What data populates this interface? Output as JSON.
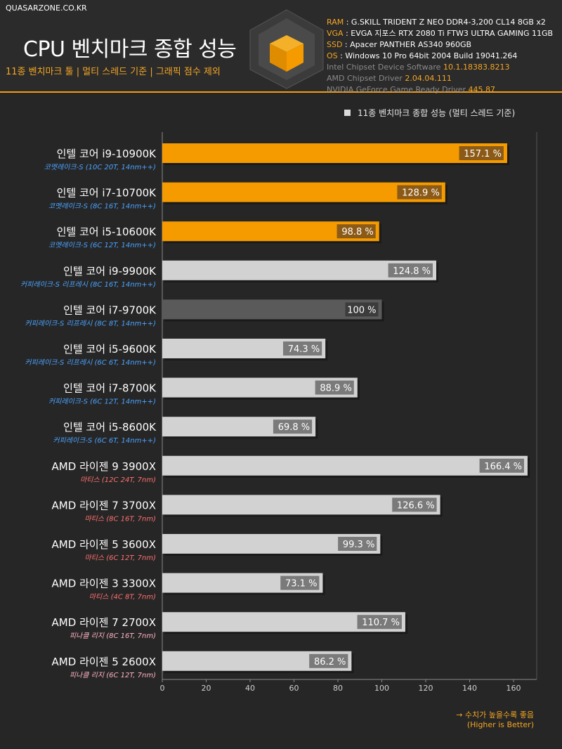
{
  "site": "QUASARZONE.CO.KR",
  "header": {
    "title": "CPU 벤치마크 종합 성능",
    "subtitle": "11종 벤치마크 툴 | 멀티 스레드 기준 | 그래픽 점수 제외",
    "specs": {
      "ram_key": "RAM",
      "ram": "G.SKILL TRIDENT Z NEO DDR4-3,200 CL14 8GB x2",
      "vga_key": "VGA",
      "vga": "EVGA 지포스 RTX 2080 Ti FTW3 ULTRA GAMING 11GB",
      "ssd_key": "SSD",
      "ssd": "Apacer PANTHER AS340 960GB",
      "os_key": "OS",
      "os": "Windows 10 Pro 64bit 2004 Build 19041.264",
      "intel_label": "Intel Chipset Device Software",
      "intel_ver": "10.1.18383.8213",
      "amd_label": "AMD Chipset Driver",
      "amd_ver": "2.04.04.111",
      "nvidia_label": "NVIDIA GeForce Game Ready Driver",
      "nvidia_ver": "445.87"
    }
  },
  "legend": "11종 벤치마크 종합 성능 (멀티 스레드 기준)",
  "note": {
    "line1": "→ 수치가 높을수록 좋음",
    "line2": "(Higher is Better)"
  },
  "colors": {
    "orange": "#f59b00",
    "light": "#d2d2d2",
    "dark": "#5a5a5a",
    "blue_sub": "#4aa3ff",
    "red_sub": "#ff6f6f",
    "pink_sub": "#ffb3c4"
  },
  "chart_data": {
    "type": "bar",
    "orientation": "horizontal",
    "title": "11종 벤치마크 종합 성능 (멀티 스레드 기준)",
    "xlim": [
      0,
      170
    ],
    "xticks": [
      0,
      20,
      40,
      60,
      80,
      100,
      120,
      140,
      160
    ],
    "categories": [
      {
        "name": "인텔 코어 i9-10900K",
        "sub": "코멧레이크-S (10C 20T, 14nm++)",
        "value": 157.1,
        "label": "157.1 %",
        "style": "orange",
        "sub_color": "blue_sub"
      },
      {
        "name": "인텔 코어 i7-10700K",
        "sub": "코멧레이크-S (8C 16T, 14nm++)",
        "value": 128.9,
        "label": "128.9 %",
        "style": "orange",
        "sub_color": "blue_sub"
      },
      {
        "name": "인텔 코어 i5-10600K",
        "sub": "코멧레이크-S (6C 12T, 14nm++)",
        "value": 98.8,
        "label": "98.8 %",
        "style": "orange",
        "sub_color": "blue_sub"
      },
      {
        "name": "인텔 코어 i9-9900K",
        "sub": "커피레이크-S 리프레시 (8C 16T, 14nm++)",
        "value": 124.8,
        "label": "124.8 %",
        "style": "light",
        "sub_color": "blue_sub"
      },
      {
        "name": "인텔 코어 i7-9700K",
        "sub": "커피레이크-S 리프레시 (8C 8T, 14nm++)",
        "value": 100,
        "label": "100 %",
        "style": "dark",
        "sub_color": "blue_sub"
      },
      {
        "name": "인텔 코어 i5-9600K",
        "sub": "커피레이크-S 리프레시 (6C 6T, 14nm++)",
        "value": 74.3,
        "label": "74.3 %",
        "style": "light",
        "sub_color": "blue_sub"
      },
      {
        "name": "인텔 코어 i7-8700K",
        "sub": "커피레이크-S  (6C 12T, 14nm++)",
        "value": 88.9,
        "label": "88.9 %",
        "style": "light",
        "sub_color": "blue_sub"
      },
      {
        "name": "인텔 코어 i5-8600K",
        "sub": "커피레이크-S  (6C 6T, 14nm++)",
        "value": 69.8,
        "label": "69.8 %",
        "style": "light",
        "sub_color": "blue_sub"
      },
      {
        "name": "AMD 라이젠 9 3900X",
        "sub": "마티스 (12C 24T, 7nm)",
        "value": 166.4,
        "label": "166.4 %",
        "style": "light",
        "sub_color": "red_sub"
      },
      {
        "name": "AMD 라이젠 7 3700X",
        "sub": "마티스 (8C 16T, 7nm)",
        "value": 126.6,
        "label": "126.6 %",
        "style": "light",
        "sub_color": "red_sub"
      },
      {
        "name": "AMD 라이젠 5 3600X",
        "sub": "마티스 (6C 12T, 7nm)",
        "value": 99.3,
        "label": "99.3 %",
        "style": "light",
        "sub_color": "red_sub"
      },
      {
        "name": "AMD 라이젠 3 3300X",
        "sub": "마티스 (4C 8T, 7nm)",
        "value": 73.1,
        "label": "73.1 %",
        "style": "light",
        "sub_color": "red_sub"
      },
      {
        "name": "AMD 라이젠 7 2700X",
        "sub": "피나클 리지 (8C 16T, 7nm)",
        "value": 110.7,
        "label": "110.7 %",
        "style": "light",
        "sub_color": "pink_sub"
      },
      {
        "name": "AMD 라이젠 5 2600X",
        "sub": "피나클 리지 (6C 12T, 7nm)",
        "value": 86.2,
        "label": "86.2 %",
        "style": "light",
        "sub_color": "pink_sub"
      }
    ]
  }
}
